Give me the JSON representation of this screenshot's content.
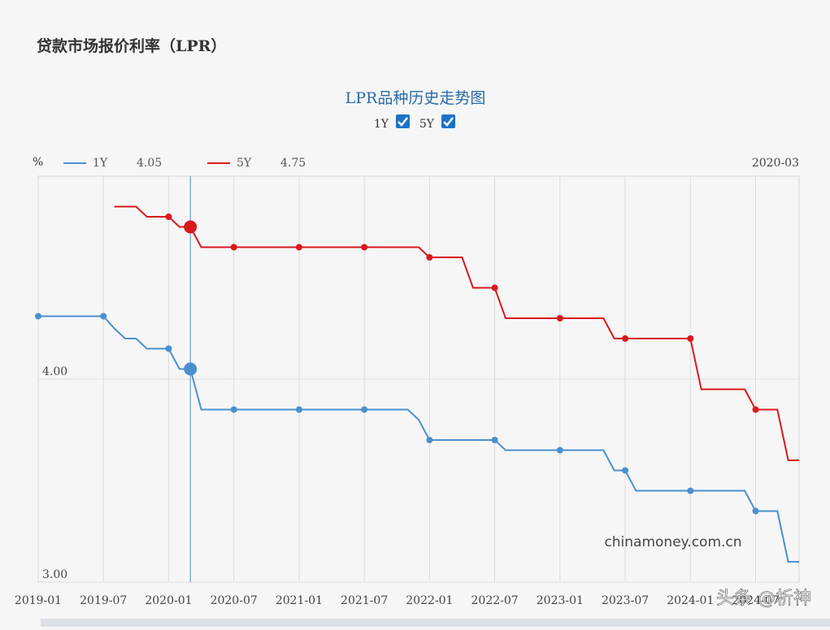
{
  "header": {
    "title": "贷款市场报价利率（LPR）"
  },
  "chart_data": {
    "type": "line",
    "title": "LPR品种历史走势图",
    "unit": "%",
    "cursor": "2020-03",
    "x": [
      "2019-01",
      "2019-02",
      "2019-03",
      "2019-04",
      "2019-05",
      "2019-06",
      "2019-07",
      "2019-08",
      "2019-09",
      "2019-10",
      "2019-11",
      "2019-12",
      "2020-01",
      "2020-02",
      "2020-03",
      "2020-04",
      "2020-05",
      "2020-06",
      "2020-07",
      "2020-08",
      "2020-09",
      "2020-10",
      "2020-11",
      "2020-12",
      "2021-01",
      "2021-02",
      "2021-03",
      "2021-04",
      "2021-05",
      "2021-06",
      "2021-07",
      "2021-08",
      "2021-09",
      "2021-10",
      "2021-11",
      "2021-12",
      "2022-01",
      "2022-02",
      "2022-03",
      "2022-04",
      "2022-05",
      "2022-06",
      "2022-07",
      "2022-08",
      "2022-09",
      "2022-10",
      "2022-11",
      "2022-12",
      "2023-01",
      "2023-02",
      "2023-03",
      "2023-04",
      "2023-05",
      "2023-06",
      "2023-07",
      "2023-08",
      "2023-09",
      "2023-10",
      "2023-11",
      "2023-12",
      "2024-01",
      "2024-02",
      "2024-03",
      "2024-04",
      "2024-05",
      "2024-06",
      "2024-07",
      "2024-08",
      "2024-09",
      "2024-10",
      "2024-11"
    ],
    "series": [
      {
        "name": "1Y",
        "color": "#4a90d0",
        "values": [
          4.31,
          4.31,
          4.31,
          4.31,
          4.31,
          4.31,
          4.31,
          4.25,
          4.2,
          4.2,
          4.15,
          4.15,
          4.15,
          4.05,
          4.05,
          3.85,
          3.85,
          3.85,
          3.85,
          3.85,
          3.85,
          3.85,
          3.85,
          3.85,
          3.85,
          3.85,
          3.85,
          3.85,
          3.85,
          3.85,
          3.85,
          3.85,
          3.85,
          3.85,
          3.85,
          3.8,
          3.7,
          3.7,
          3.7,
          3.7,
          3.7,
          3.7,
          3.7,
          3.65,
          3.65,
          3.65,
          3.65,
          3.65,
          3.65,
          3.65,
          3.65,
          3.65,
          3.65,
          3.55,
          3.55,
          3.45,
          3.45,
          3.45,
          3.45,
          3.45,
          3.45,
          3.45,
          3.45,
          3.45,
          3.45,
          3.45,
          3.35,
          3.35,
          3.35,
          3.1,
          3.1
        ]
      },
      {
        "name": "5Y",
        "color": "#d9191c",
        "values": [
          null,
          null,
          null,
          null,
          null,
          null,
          null,
          4.85,
          4.85,
          4.85,
          4.8,
          4.8,
          4.8,
          4.75,
          4.75,
          4.65,
          4.65,
          4.65,
          4.65,
          4.65,
          4.65,
          4.65,
          4.65,
          4.65,
          4.65,
          4.65,
          4.65,
          4.65,
          4.65,
          4.65,
          4.65,
          4.65,
          4.65,
          4.65,
          4.65,
          4.65,
          4.6,
          4.6,
          4.6,
          4.6,
          4.45,
          4.45,
          4.45,
          4.3,
          4.3,
          4.3,
          4.3,
          4.3,
          4.3,
          4.3,
          4.3,
          4.3,
          4.3,
          4.2,
          4.2,
          4.2,
          4.2,
          4.2,
          4.2,
          4.2,
          4.2,
          3.95,
          3.95,
          3.95,
          3.95,
          3.95,
          3.85,
          3.85,
          3.85,
          3.6,
          3.6
        ]
      }
    ],
    "xlim": [
      "2019-01",
      "2024-11"
    ],
    "xticks": [
      "2019-01",
      "2019-07",
      "2020-01",
      "2020-07",
      "2021-01",
      "2021-07",
      "2022-01",
      "2022-07",
      "2023-01",
      "2023-07",
      "2024-01",
      "2024-07"
    ],
    "ylim": [
      3,
      5
    ],
    "yticks": [
      {
        "value": 3,
        "label": "3.00"
      },
      {
        "value": 4,
        "label": "4.00"
      }
    ],
    "grid": true,
    "annotations": [
      "chinamoney.com.cn",
      "头条 @析神"
    ]
  }
}
